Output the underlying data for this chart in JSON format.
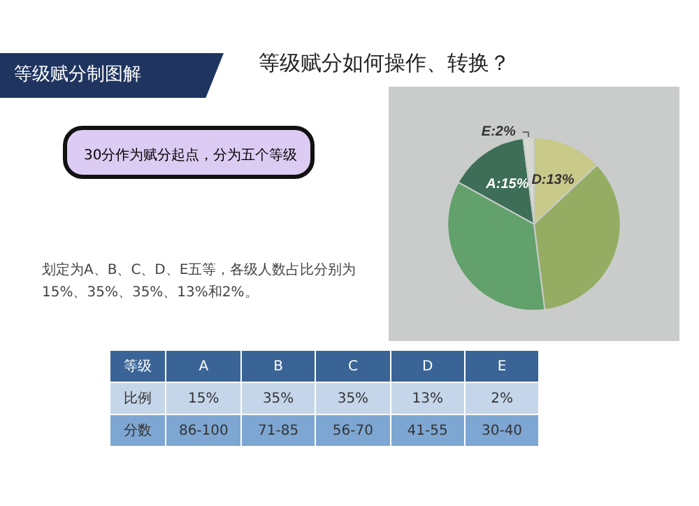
{
  "chart_data": {
    "type": "pie",
    "title": "等级赋分如何操作、转换？",
    "subtitle": "等级赋分制图解",
    "categories": [
      null,
      null,
      null,
      null,
      null
    ],
    "values": [
      15,
      35,
      35,
      13,
      2
    ],
    "colors": [
      "#3e6e57",
      "#62a06c",
      "#94ad63",
      "#c9c98a",
      "#d6d9d2"
    ],
    "value_labels": [
      "A:15%",
      null,
      null,
      "D:13%",
      "E:2%"
    ],
    "annotations": [
      "30分作为赋分起点，分为五个等级",
      "划定为A、B、C、D、E五等，各级人数占比分别为15%、35%、35%、13%和2%。",
      "等级",
      "A",
      "B",
      "C",
      "D",
      "E",
      "比例",
      "15%",
      "35%",
      "35%",
      "13%",
      "2%",
      "分数",
      "86-100",
      "71-85",
      "56-70",
      "41-55",
      "30-40"
    ]
  }
}
